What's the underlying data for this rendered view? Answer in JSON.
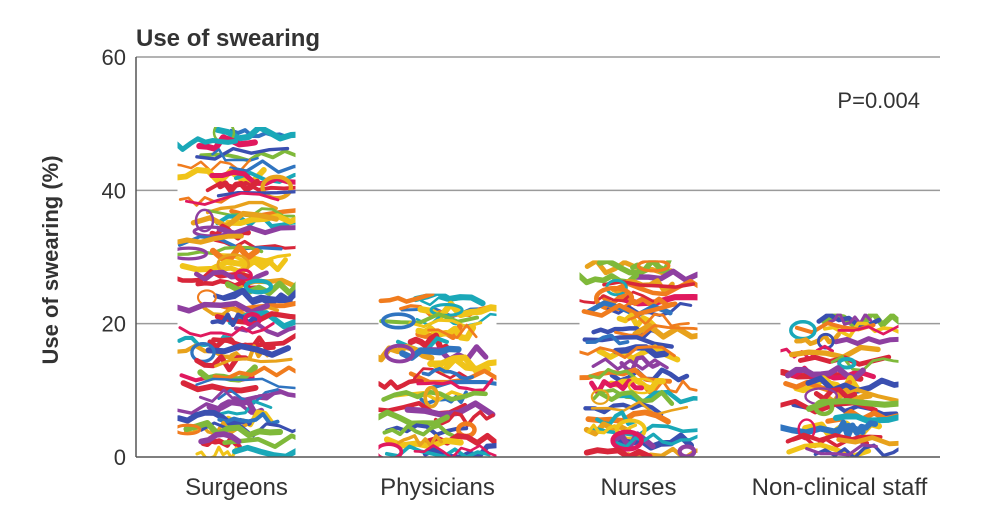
{
  "chart_data": {
    "type": "bar",
    "title": "Use of swearing",
    "ylabel": "Use of swearing (%)",
    "xlabel": "",
    "categories": [
      "Surgeons",
      "Physicians",
      "Nurses",
      "Non-clinical staff"
    ],
    "values": [
      49.5,
      24.5,
      29.5,
      21.5
    ],
    "ylim": [
      0,
      60
    ],
    "yticks": [
      0,
      20,
      40,
      60
    ],
    "grid": true,
    "annotation": "P=0.004",
    "palette": [
      "#e8a21c",
      "#e0195e",
      "#2f74c0",
      "#7fb93a",
      "#f07c1e",
      "#1aa8b8",
      "#8e3fa0",
      "#d8263a",
      "#f0c419",
      "#3a4fb0"
    ]
  }
}
